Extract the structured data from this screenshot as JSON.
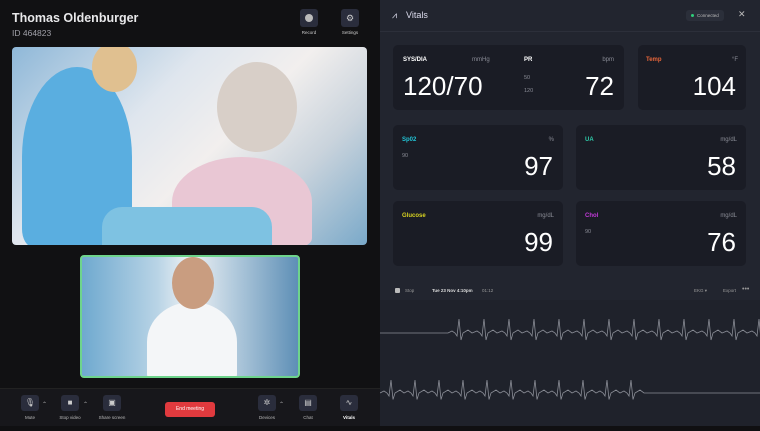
{
  "patient": {
    "name": "Thomas Oldenburger",
    "id": "ID 464823"
  },
  "top_actions": {
    "record": "Record",
    "settings": "Settings"
  },
  "toolbar": {
    "mute": "Mute",
    "stop_video": "Stop video",
    "share_screen": "Share screen",
    "end_meeting": "End meeting",
    "devices": "Devices",
    "chat": "Chat",
    "vitals": "Vitals"
  },
  "vitals_panel": {
    "title": "Vitals",
    "status": "Connected",
    "status_color": "#2fcf7a",
    "bp": {
      "label": "SYS/DIA",
      "unit": "mmHg",
      "value": "120/70"
    },
    "pr": {
      "label": "PR",
      "unit": "bpm",
      "value": "72",
      "low": "50",
      "high": "120"
    },
    "temp": {
      "label": "Temp",
      "unit": "°F",
      "value": "104",
      "color": "#e8663a"
    },
    "spo2": {
      "label": "Sp02",
      "unit": "%",
      "value": "97",
      "low": "90",
      "color": "#22c4d6"
    },
    "ua": {
      "label": "UA",
      "unit": "mg/dL",
      "value": "58",
      "color": "#2ec9a8"
    },
    "glucose": {
      "label": "Glucose",
      "unit": "mg/dL",
      "value": "99",
      "color": "#d8d320"
    },
    "chol": {
      "label": "Chol",
      "unit": "mg/dL",
      "value": "76",
      "low": "90",
      "color": "#c13ad8"
    },
    "ecg": {
      "stop": "Stop",
      "datetime": "Tue 23 Nov 4:10pm",
      "elapsed": "01:12",
      "mode": "EKG",
      "export": "Export"
    }
  }
}
